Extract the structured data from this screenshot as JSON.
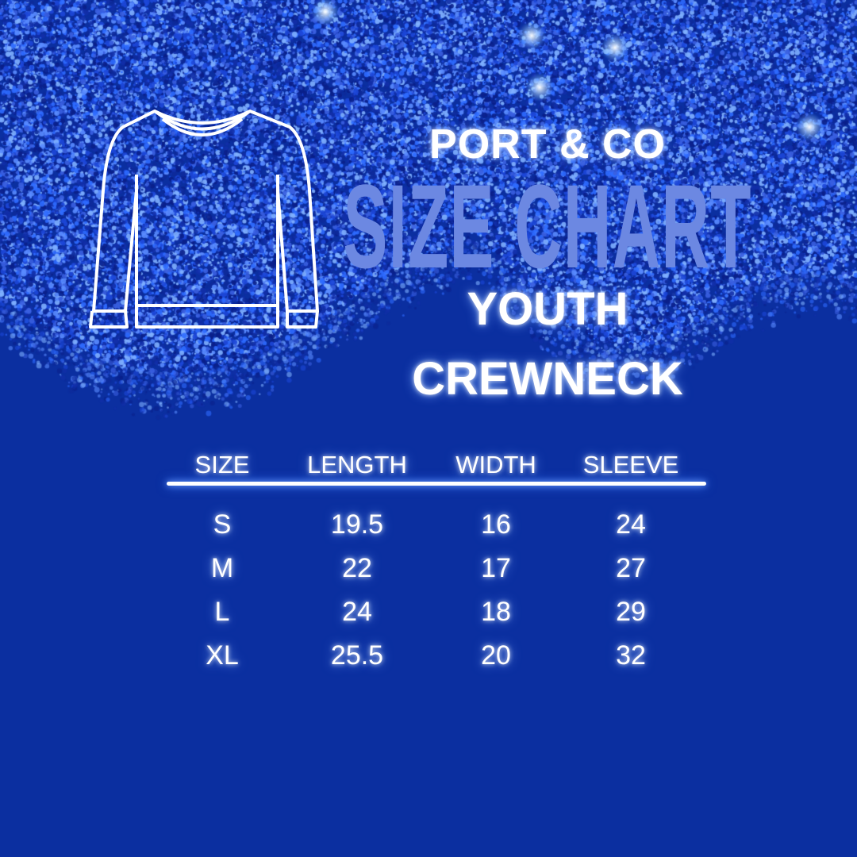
{
  "colors": {
    "background": "#0b2fa0",
    "title": "#6c88e2",
    "text": "#ffffff",
    "glitter": "#1f4fe0"
  },
  "icon": "crewneck-sweater-outline-icon",
  "brand": "PORT & CO",
  "title": "SIZE CHART",
  "subtitle_line1": "YOUTH",
  "subtitle_line2": "CREWNECK",
  "table": {
    "headers": [
      "SIZE",
      "LENGTH",
      "WIDTH",
      "SLEEVE"
    ],
    "rows": [
      [
        "S",
        "19.5",
        "16",
        "24"
      ],
      [
        "M",
        "22",
        "17",
        "27"
      ],
      [
        "L",
        "24",
        "18",
        "29"
      ],
      [
        "XL",
        "25.5",
        "20",
        "32"
      ]
    ]
  }
}
